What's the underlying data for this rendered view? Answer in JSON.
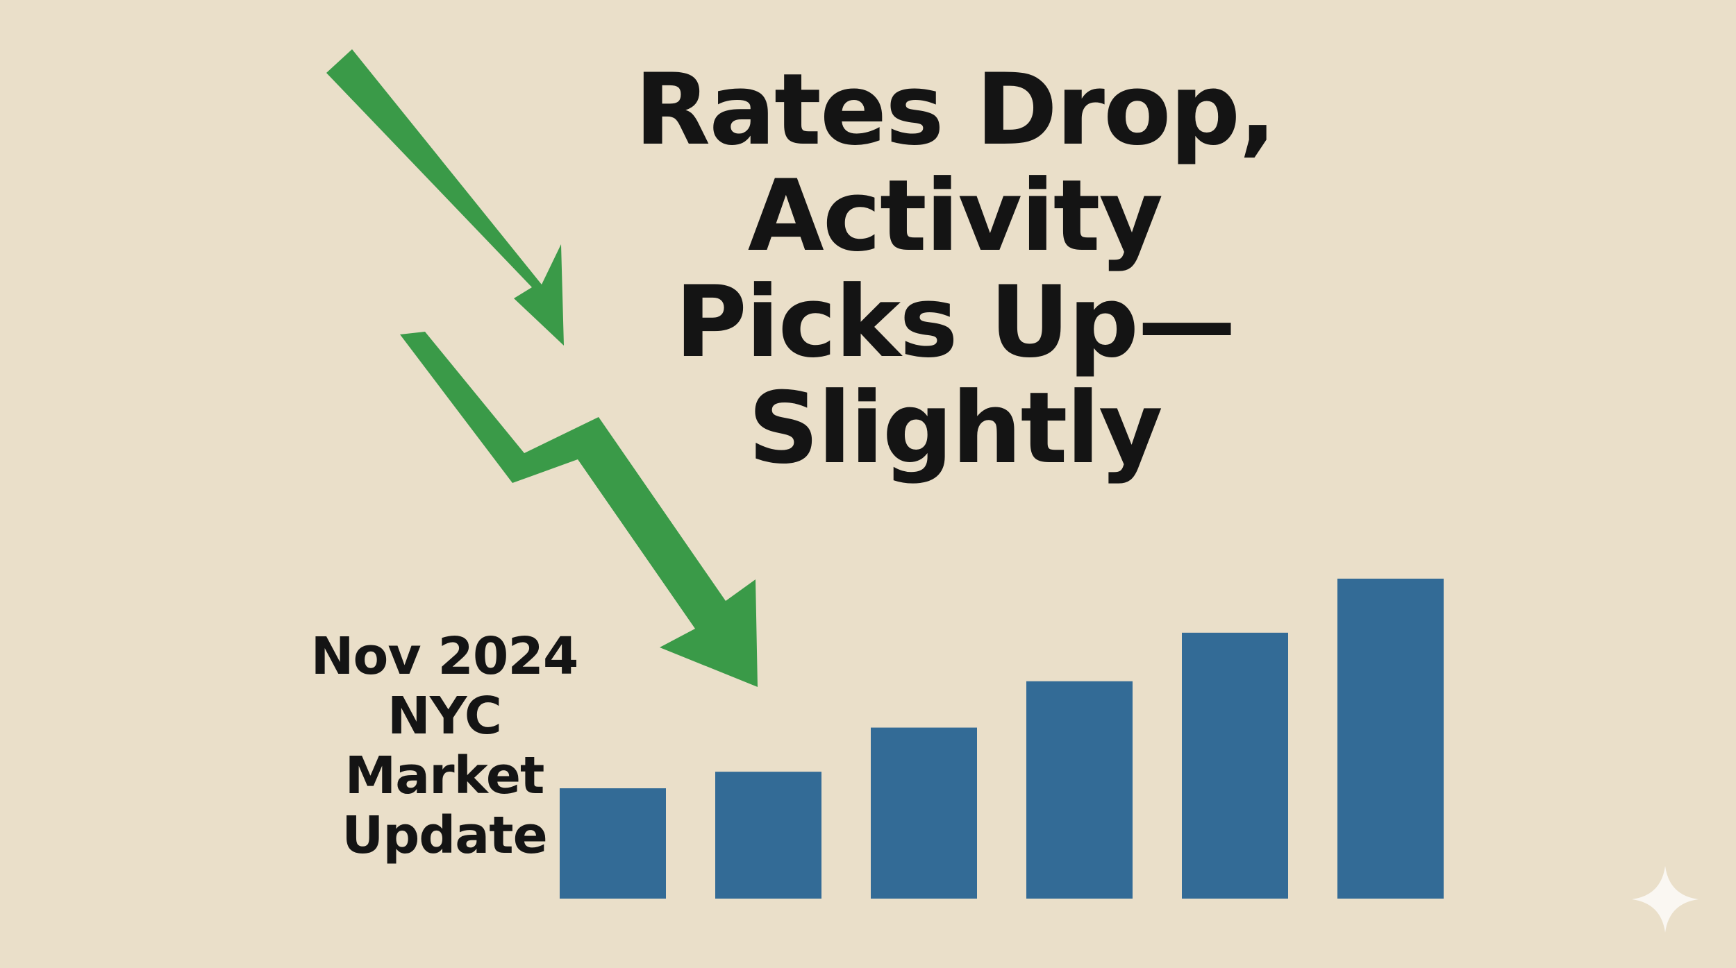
{
  "headline": {
    "lines": [
      "Rates Drop,",
      "Activity",
      "Picks Up—",
      "Slightly"
    ]
  },
  "subtitle": {
    "lines": [
      "Nov 2024",
      "NYC",
      "Market",
      "Update"
    ]
  },
  "bars": {
    "color": "#336b96",
    "values": [
      1.0,
      1.15,
      1.55,
      1.97,
      2.41,
      2.9
    ]
  },
  "arrows": {
    "color": "#3a9a48",
    "icons": [
      "arrow-down-right-icon",
      "zigzag-arrow-down-icon"
    ]
  },
  "colors": {
    "background": "#eadfc9",
    "text": "#141414"
  },
  "watermark": {
    "icon": "sparkle-icon",
    "color": "#ffffff"
  }
}
